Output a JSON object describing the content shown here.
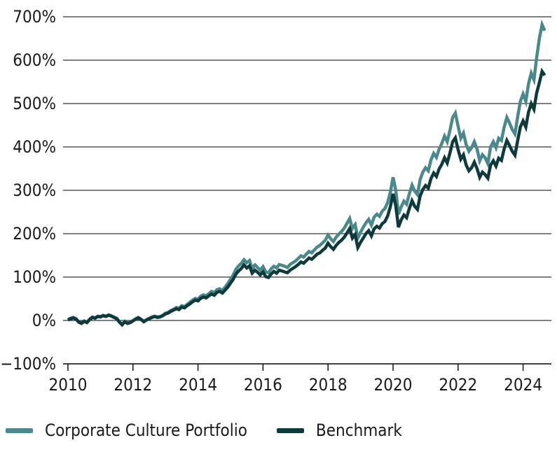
{
  "page": {
    "background": "#ffffff",
    "text_color": "#1a1a1a",
    "grid_color": "#000000"
  },
  "legend": {
    "items": [
      {
        "label": "Corporate Culture Portfolio",
        "color": "#4A898B"
      },
      {
        "label": "Benchmark",
        "color": "#0F3A3C"
      }
    ]
  },
  "chart_data": {
    "type": "line",
    "title": "",
    "xlabel": "",
    "ylabel": "",
    "x_start_year": 2010,
    "x_step_months": 1,
    "x_ticks": [
      2010,
      2012,
      2014,
      2016,
      2018,
      2020,
      2022,
      2024
    ],
    "y_ticks": [
      -100,
      0,
      100,
      200,
      300,
      400,
      500,
      600,
      700
    ],
    "y_tick_suffix": "%",
    "ylim": [
      -100,
      700
    ],
    "grid": "horizontal",
    "legend_position": "bottom-left",
    "series": [
      {
        "name": "Corporate Culture Portfolio",
        "color": "#4A898B",
        "values": [
          2,
          5,
          7,
          4,
          -3,
          -6,
          -1,
          -4,
          3,
          8,
          6,
          10,
          9,
          12,
          10,
          13,
          11,
          8,
          5,
          -3,
          -9,
          -2,
          -6,
          -4,
          0,
          4,
          7,
          3,
          -2,
          2,
          5,
          8,
          10,
          8,
          9,
          12,
          17,
          19,
          23,
          26,
          30,
          28,
          34,
          32,
          37,
          42,
          47,
          51,
          49,
          56,
          59,
          57,
          62,
          67,
          64,
          71,
          73,
          69,
          77,
          85,
          95,
          105,
          118,
          126,
          132,
          140,
          133,
          138,
          120,
          128,
          122,
          116,
          124,
          112,
          110,
          119,
          125,
          121,
          129,
          127,
          125,
          122,
          129,
          133,
          137,
          143,
          149,
          146,
          153,
          159,
          156,
          163,
          169,
          173,
          179,
          185,
          197,
          188,
          182,
          192,
          199,
          205,
          213,
          224,
          235,
          212,
          221,
          190,
          203,
          215,
          225,
          233,
          220,
          238,
          245,
          240,
          252,
          258,
          272,
          295,
          330,
          300,
          245,
          262,
          275,
          268,
          292,
          312,
          298,
          290,
          325,
          342,
          352,
          345,
          370,
          385,
          376,
          395,
          408,
          425,
          412,
          438,
          468,
          478,
          448,
          420,
          432,
          405,
          390,
          398,
          412,
          395,
          368,
          382,
          375,
          362,
          400,
          412,
          398,
          420,
          415,
          445,
          468,
          455,
          440,
          430,
          470,
          505,
          522,
          505,
          545,
          570,
          555,
          605,
          650,
          682,
          668
        ]
      },
      {
        "name": "Benchmark",
        "color": "#0F3A3C",
        "values": [
          1,
          4,
          6,
          3,
          -4,
          -7,
          -2,
          -5,
          2,
          7,
          5,
          9,
          8,
          11,
          9,
          12,
          10,
          7,
          4,
          -4,
          -10,
          -3,
          -7,
          -5,
          -1,
          3,
          6,
          2,
          -3,
          1,
          4,
          7,
          9,
          7,
          8,
          11,
          15,
          17,
          21,
          24,
          27,
          25,
          31,
          29,
          34,
          38,
          43,
          47,
          45,
          51,
          54,
          52,
          57,
          61,
          58,
          65,
          67,
          63,
          70,
          77,
          86,
          95,
          107,
          114,
          120,
          128,
          121,
          126,
          109,
          116,
          111,
          105,
          112,
          101,
          99,
          107,
          113,
          109,
          116,
          114,
          112,
          110,
          116,
          120,
          124,
          129,
          135,
          132,
          138,
          144,
          141,
          147,
          153,
          156,
          162,
          167,
          178,
          170,
          164,
          173,
          180,
          185,
          192,
          202,
          212,
          190,
          198,
          168,
          180,
          190,
          200,
          207,
          195,
          211,
          217,
          213,
          223,
          228,
          241,
          262,
          292,
          264,
          215,
          232,
          243,
          237,
          258,
          276,
          263,
          256,
          287,
          302,
          311,
          305,
          327,
          340,
          332,
          349,
          360,
          375,
          363,
          386,
          412,
          421,
          394,
          372,
          382,
          358,
          345,
          352,
          365,
          350,
          330,
          342,
          336,
          328,
          358,
          368,
          356,
          374,
          369,
          395,
          415,
          403,
          390,
          381,
          415,
          446,
          460,
          446,
          480,
          500,
          487,
          524,
          548,
          574,
          565
        ]
      }
    ]
  }
}
